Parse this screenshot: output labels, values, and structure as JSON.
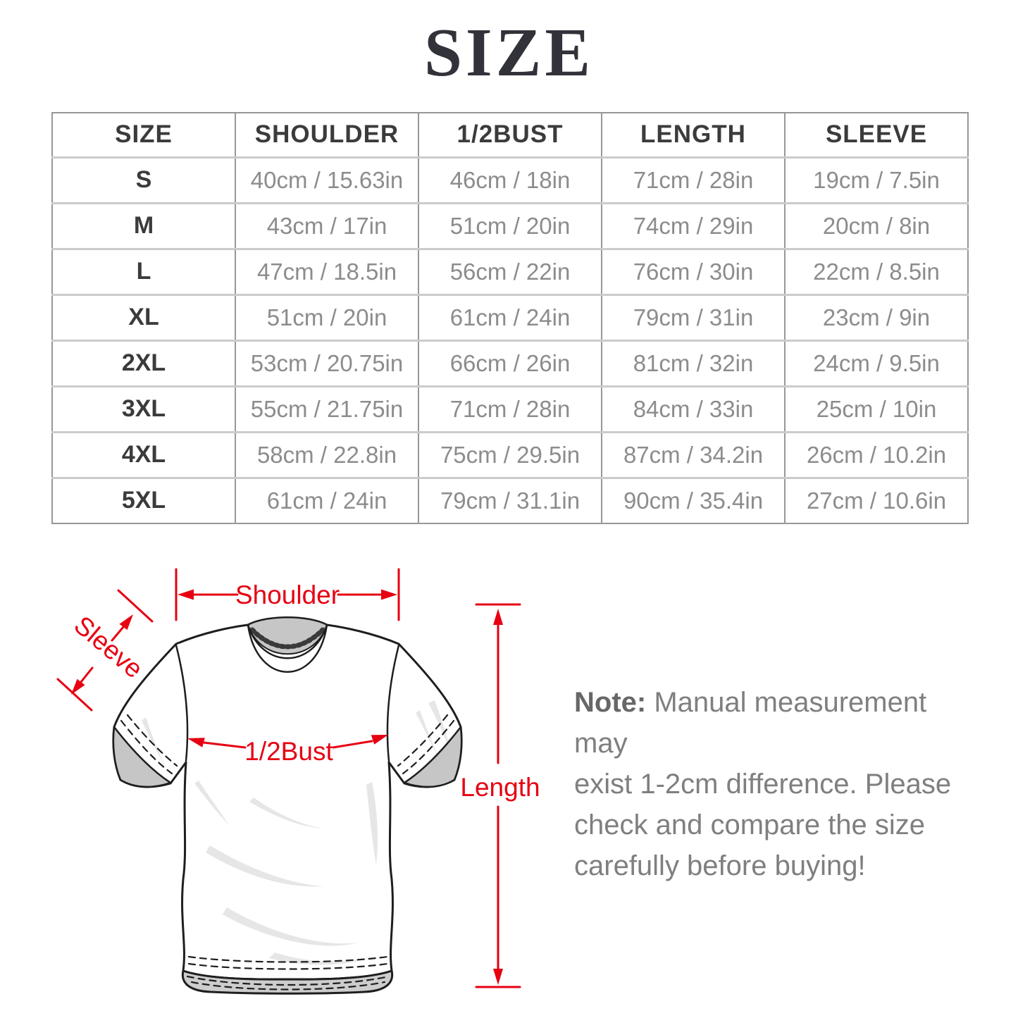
{
  "title": "SIZE",
  "table": {
    "headers": [
      "SIZE",
      "SHOULDER",
      "1/2BUST",
      "LENGTH",
      "SLEEVE"
    ],
    "rows": [
      [
        "S",
        "40cm / 15.63in",
        "46cm / 18in",
        "71cm / 28in",
        "19cm / 7.5in"
      ],
      [
        "M",
        "43cm / 17in",
        "51cm / 20in",
        "74cm / 29in",
        "20cm / 8in"
      ],
      [
        "L",
        "47cm / 18.5in",
        "56cm / 22in",
        "76cm / 30in",
        "22cm / 8.5in"
      ],
      [
        "XL",
        "51cm / 20in",
        "61cm / 24in",
        "79cm / 31in",
        "23cm / 9in"
      ],
      [
        "2XL",
        "53cm / 20.75in",
        "66cm / 26in",
        "81cm / 32in",
        "24cm / 9.5in"
      ],
      [
        "3XL",
        "55cm / 21.75in",
        "71cm / 28in",
        "84cm / 33in",
        "25cm / 10in"
      ],
      [
        "4XL",
        "58cm / 22.8in",
        "75cm / 29.5in",
        "87cm / 34.2in",
        "26cm / 10.2in"
      ],
      [
        "5XL",
        "61cm / 24in",
        "79cm / 31.1in",
        "90cm / 35.4in",
        "27cm / 10.6in"
      ]
    ]
  },
  "diagram": {
    "accent_color": "#e60012",
    "labels": {
      "shoulder": "Shoulder",
      "sleeve": "Sleeve",
      "half_bust": "1/2Bust",
      "length": "Length"
    }
  },
  "note": {
    "label": "Note:",
    "line1": " Manual measurement may",
    "line2": "exist 1-2cm difference. Please",
    "line3": "check and compare the size",
    "line4": "carefully before buying!"
  }
}
